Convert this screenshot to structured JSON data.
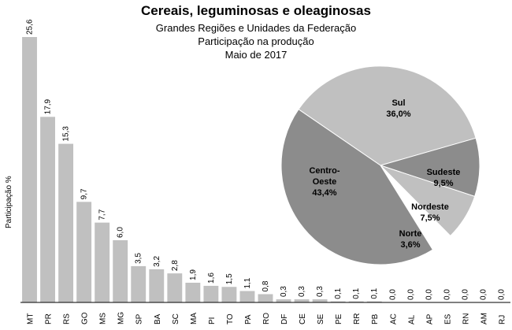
{
  "chart_data": [
    {
      "type": "bar",
      "title": "Cereais, leguminosas e oleaginosas",
      "subtitles": [
        "Grandes Regiões e Unidades da Federação",
        "Participação na produção",
        "Maio de 2017"
      ],
      "ylabel": "Participação %",
      "xlabel": "",
      "ylim": [
        0,
        26.5
      ],
      "categories": [
        "MT",
        "PR",
        "RS",
        "GO",
        "MS",
        "MG",
        "SP",
        "BA",
        "SC",
        "MA",
        "PI",
        "TO",
        "PA",
        "RO",
        "DF",
        "CE",
        "SE",
        "PE",
        "RR",
        "PB",
        "AC",
        "AL",
        "AP",
        "ES",
        "RN",
        "AM",
        "RJ"
      ],
      "values": [
        25.6,
        17.9,
        15.3,
        9.7,
        7.7,
        6.0,
        3.5,
        3.2,
        2.8,
        1.9,
        1.6,
        1.5,
        1.1,
        0.8,
        0.3,
        0.3,
        0.3,
        0.1,
        0.1,
        0.1,
        0.0,
        0.0,
        0.0,
        0.0,
        0.0,
        0.0,
        0.0
      ],
      "value_labels": [
        "25,6",
        "17,9",
        "15,3",
        "9,7",
        "7,7",
        "6,0",
        "3,5",
        "3,2",
        "2,8",
        "1,9",
        "1,6",
        "1,5",
        "1,1",
        "0,8",
        "0,3",
        "0,3",
        "0,3",
        "0,1",
        "0,1",
        "0,1",
        "0,0",
        "0,0",
        "0,0",
        "0,0",
        "0,0",
        "0,0",
        "0,0"
      ],
      "bar_color": "#c0c0c0",
      "grid": false
    },
    {
      "type": "pie",
      "slices": [
        {
          "name": "Sul",
          "value": 36.0,
          "label": "36,0%",
          "color": "#c0c0c0"
        },
        {
          "name": "Sudeste",
          "value": 9.5,
          "label": "9,5%",
          "color": "#8c8c8c"
        },
        {
          "name": "Nordeste",
          "value": 7.5,
          "label": "7,5%",
          "color": "#c0c0c0"
        },
        {
          "name": "Norte",
          "value": 3.6,
          "label": "3,6%",
          "color": "#ffffff"
        },
        {
          "name": "Centro-Oeste",
          "value": 43.4,
          "label": "43,4%",
          "color": "#8c8c8c"
        }
      ]
    }
  ]
}
